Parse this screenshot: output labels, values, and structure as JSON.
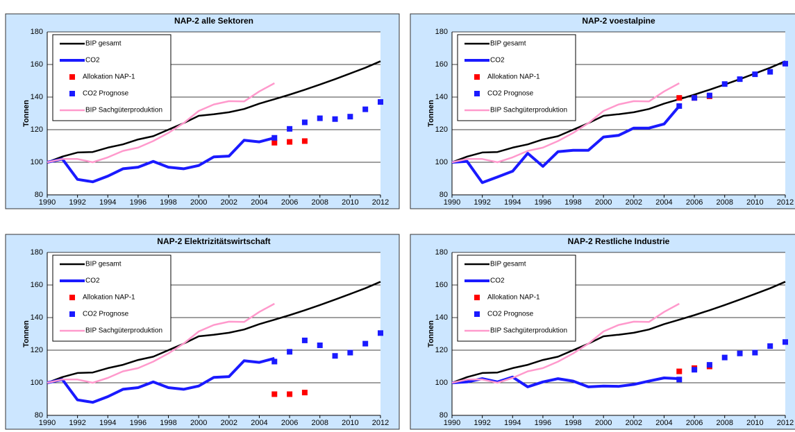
{
  "chart_data": [
    {
      "type": "line",
      "title": "NAP-2 alle Sektoren",
      "ylabel": "Tonnen",
      "xlim": [
        1990,
        2012
      ],
      "xticks": [
        1990,
        1992,
        1994,
        1996,
        1998,
        2000,
        2002,
        2004,
        2006,
        2008,
        2010,
        2012
      ],
      "ylim": [
        80,
        180
      ],
      "yticks": [
        80,
        100,
        120,
        140,
        160,
        180
      ],
      "grid": true,
      "legend": "upper left",
      "series": [
        {
          "name": "BIP gesamt",
          "color": "#000000",
          "style": "line",
          "x": [
            1990,
            1991,
            1992,
            1993,
            1994,
            1995,
            1996,
            1997,
            1998,
            1999,
            2000,
            2001,
            2002,
            2003,
            2004,
            2005,
            2006,
            2007,
            2008,
            2009,
            2010,
            2011,
            2012
          ],
          "values": [
            100,
            103.5,
            106,
            106.3,
            109,
            111,
            114,
            116,
            120,
            124,
            128.5,
            129.5,
            130.7,
            132.7,
            136,
            138.7,
            141.5,
            144.5,
            147.7,
            151,
            154.5,
            158,
            162
          ]
        },
        {
          "name": "CO2",
          "color": "#1a1aff",
          "style": "line",
          "x": [
            1990,
            1991,
            1992,
            1993,
            1994,
            1995,
            1996,
            1997,
            1998,
            1999,
            2000,
            2001,
            2002,
            2003,
            2004,
            2005
          ],
          "values": [
            100,
            102,
            89.5,
            88,
            91.5,
            96,
            97,
            100.5,
            97,
            96,
            98,
            103.3,
            103.8,
            113.5,
            112.5,
            115
          ]
        },
        {
          "name": "Allokation NAP-1",
          "color": "#ff0000",
          "style": "markers",
          "x": [
            2005,
            2006,
            2007
          ],
          "values": [
            112,
            112.5,
            113
          ]
        },
        {
          "name": "CO2 Prognose",
          "color": "#1a1aff",
          "style": "markers",
          "x": [
            2005,
            2006,
            2007,
            2008,
            2009,
            2010,
            2011,
            2012
          ],
          "values": [
            115,
            120.5,
            124.5,
            127,
            126.5,
            128,
            132.5,
            137
          ]
        },
        {
          "name": "BIP Sachgüterproduktion",
          "color": "#ff99cc",
          "style": "line",
          "x": [
            1990,
            1991,
            1992,
            1993,
            1994,
            1995,
            1996,
            1997,
            1998,
            1999,
            2000,
            2001,
            2002,
            2003,
            2004,
            2005
          ],
          "values": [
            100,
            102,
            102,
            100,
            103,
            107,
            109,
            113,
            118,
            124,
            131.5,
            135.5,
            137.5,
            137.3,
            143.5,
            148.5
          ]
        }
      ]
    },
    {
      "type": "line",
      "title": "NAP-2 voestalpine",
      "ylabel": "Tonnen",
      "xlim": [
        1990,
        2012
      ],
      "xticks": [
        1990,
        1992,
        1994,
        1996,
        1998,
        2000,
        2002,
        2004,
        2006,
        2008,
        2010,
        2012
      ],
      "ylim": [
        80,
        180
      ],
      "yticks": [
        80,
        100,
        120,
        140,
        160,
        180
      ],
      "grid": true,
      "legend": "upper left",
      "series": [
        {
          "name": "BIP gesamt",
          "color": "#000000",
          "style": "line",
          "x": [
            1990,
            1991,
            1992,
            1993,
            1994,
            1995,
            1996,
            1997,
            1998,
            1999,
            2000,
            2001,
            2002,
            2003,
            2004,
            2005,
            2006,
            2007,
            2008,
            2009,
            2010,
            2011,
            2012
          ],
          "values": [
            100,
            103.5,
            106,
            106.3,
            109,
            111,
            114,
            116,
            120,
            124,
            128.5,
            129.5,
            130.7,
            132.7,
            136,
            138.7,
            141.5,
            144.5,
            147.7,
            151,
            154.5,
            158,
            162
          ]
        },
        {
          "name": "CO2",
          "color": "#1a1aff",
          "style": "line",
          "x": [
            1990,
            1991,
            1992,
            1993,
            1994,
            1995,
            1996,
            1997,
            1998,
            1999,
            2000,
            2001,
            2002,
            2003,
            2004,
            2005
          ],
          "values": [
            100,
            100.5,
            87.5,
            91,
            94.5,
            105.5,
            97.5,
            106.5,
            107.3,
            107.3,
            115.5,
            116.5,
            121,
            121,
            123.5,
            134.5
          ]
        },
        {
          "name": "Allokation NAP-1",
          "color": "#ff0000",
          "style": "markers",
          "x": [
            2005,
            2006,
            2007
          ],
          "values": [
            139.5,
            139.5,
            140.5
          ]
        },
        {
          "name": "CO2 Prognose",
          "color": "#1a1aff",
          "style": "markers",
          "x": [
            2005,
            2006,
            2007,
            2008,
            2009,
            2010,
            2011,
            2012
          ],
          "values": [
            134.5,
            139.5,
            141,
            148,
            151,
            154,
            155.5,
            160.5
          ]
        },
        {
          "name": "BIP Sachgüterproduktion",
          "color": "#ff99cc",
          "style": "line",
          "x": [
            1990,
            1991,
            1992,
            1993,
            1994,
            1995,
            1996,
            1997,
            1998,
            1999,
            2000,
            2001,
            2002,
            2003,
            2004,
            2005
          ],
          "values": [
            100,
            102,
            102,
            100,
            103,
            107,
            109,
            113,
            118,
            124,
            131.5,
            135.5,
            137.5,
            137.3,
            143.5,
            148.5
          ]
        }
      ]
    },
    {
      "type": "line",
      "title": "NAP-2 Elektrizitätswirtschaft",
      "ylabel": "Tonnen",
      "xlim": [
        1990,
        2012
      ],
      "xticks": [
        1990,
        1992,
        1994,
        1996,
        1998,
        2000,
        2002,
        2004,
        2006,
        2008,
        2010,
        2012
      ],
      "ylim": [
        80,
        180
      ],
      "yticks": [
        80,
        100,
        120,
        140,
        160,
        180
      ],
      "grid": true,
      "legend": "upper left",
      "series": [
        {
          "name": "BIP gesamt",
          "color": "#000000",
          "style": "line",
          "x": [
            1990,
            1991,
            1992,
            1993,
            1994,
            1995,
            1996,
            1997,
            1998,
            1999,
            2000,
            2001,
            2002,
            2003,
            2004,
            2005,
            2006,
            2007,
            2008,
            2009,
            2010,
            2011,
            2012
          ],
          "values": [
            100,
            103.5,
            106,
            106.3,
            109,
            111,
            114,
            116,
            120,
            124,
            128.5,
            129.5,
            130.7,
            132.7,
            136,
            138.7,
            141.5,
            144.5,
            147.7,
            151,
            154.5,
            158,
            162
          ]
        },
        {
          "name": "CO2",
          "color": "#1a1aff",
          "style": "line",
          "x": [
            1990,
            1991,
            1992,
            1993,
            1994,
            1995,
            1996,
            1997,
            1998,
            1999,
            2000,
            2001,
            2002,
            2003,
            2004,
            2005
          ],
          "values": [
            100,
            102,
            89.5,
            88,
            91.5,
            96,
            97,
            100.5,
            97,
            96,
            98,
            103.3,
            103.8,
            113.5,
            112.5,
            115
          ]
        },
        {
          "name": "Allokation NAP-1",
          "color": "#ff0000",
          "style": "markers",
          "x": [
            2005,
            2006,
            2007
          ],
          "values": [
            93,
            93,
            94
          ]
        },
        {
          "name": "CO2 Prognose",
          "color": "#1a1aff",
          "style": "markers",
          "x": [
            2005,
            2006,
            2007,
            2008,
            2009,
            2010,
            2011,
            2012
          ],
          "values": [
            113,
            119,
            126,
            123,
            116.5,
            118.5,
            124,
            130.5
          ]
        },
        {
          "name": "BIP Sachgüterproduktion",
          "color": "#ff99cc",
          "style": "line",
          "x": [
            1990,
            1991,
            1992,
            1993,
            1994,
            1995,
            1996,
            1997,
            1998,
            1999,
            2000,
            2001,
            2002,
            2003,
            2004,
            2005
          ],
          "values": [
            100,
            102,
            102,
            100,
            103,
            107,
            109,
            113,
            118,
            124,
            131.5,
            135.5,
            137.5,
            137.3,
            143.5,
            148.5
          ]
        }
      ]
    },
    {
      "type": "line",
      "title": "NAP-2 Restliche Industrie",
      "ylabel": "Tonnen",
      "xlim": [
        1990,
        2012
      ],
      "xticks": [
        1990,
        1992,
        1994,
        1996,
        1998,
        2000,
        2002,
        2004,
        2006,
        2008,
        2010,
        2012
      ],
      "ylim": [
        80,
        180
      ],
      "yticks": [
        80,
        100,
        120,
        140,
        160,
        180
      ],
      "grid": true,
      "legend": "upper left",
      "series": [
        {
          "name": "BIP gesamt",
          "color": "#000000",
          "style": "line",
          "x": [
            1990,
            1991,
            1992,
            1993,
            1994,
            1995,
            1996,
            1997,
            1998,
            1999,
            2000,
            2001,
            2002,
            2003,
            2004,
            2005,
            2006,
            2007,
            2008,
            2009,
            2010,
            2011,
            2012
          ],
          "values": [
            100,
            103.5,
            106,
            106.3,
            109,
            111,
            114,
            116,
            120,
            124,
            128.5,
            129.5,
            130.7,
            132.7,
            136,
            138.7,
            141.5,
            144.5,
            147.7,
            151,
            154.5,
            158,
            162
          ]
        },
        {
          "name": "CO2",
          "color": "#1a1aff",
          "style": "line",
          "x": [
            1990,
            1991,
            1992,
            1993,
            1994,
            1995,
            1996,
            1997,
            1998,
            1999,
            2000,
            2001,
            2002,
            2003,
            2004,
            2005
          ],
          "values": [
            100,
            100.5,
            102.5,
            100.5,
            103.5,
            97.5,
            100.5,
            102.5,
            101,
            97.5,
            98,
            97.8,
            99,
            101,
            103,
            102.5
          ]
        },
        {
          "name": "Allokation NAP-1",
          "color": "#ff0000",
          "style": "markers",
          "x": [
            2005,
            2006,
            2007
          ],
          "values": [
            107,
            109,
            110
          ]
        },
        {
          "name": "CO2 Prognose",
          "color": "#1a1aff",
          "style": "markers",
          "x": [
            2005,
            2006,
            2007,
            2008,
            2009,
            2010,
            2011,
            2012
          ],
          "values": [
            102,
            108,
            111,
            115.5,
            118,
            118.5,
            122.5,
            125
          ]
        },
        {
          "name": "BIP Sachgüterproduktion",
          "color": "#ff99cc",
          "style": "line",
          "x": [
            1990,
            1991,
            1992,
            1993,
            1994,
            1995,
            1996,
            1997,
            1998,
            1999,
            2000,
            2001,
            2002,
            2003,
            2004,
            2005
          ],
          "values": [
            100,
            102,
            102,
            100,
            103,
            107,
            109,
            113,
            118,
            124,
            131.5,
            135.5,
            137.5,
            137.3,
            143.5,
            148.5
          ]
        }
      ]
    }
  ]
}
